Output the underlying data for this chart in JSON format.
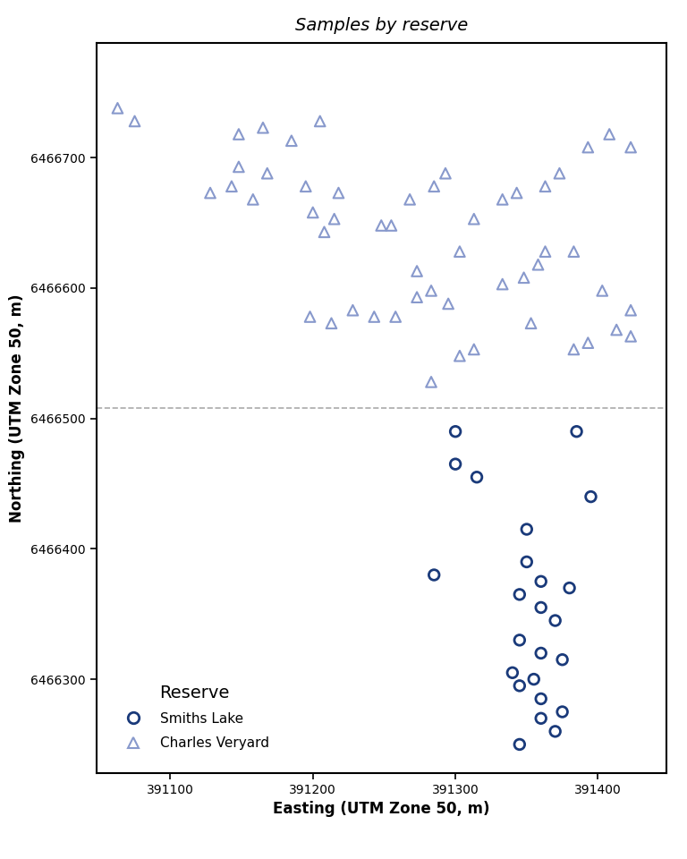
{
  "title": "Samples by reserve",
  "xlabel": "Easting (UTM Zone 50, m)",
  "ylabel": "Northing (UTM Zone 50, m)",
  "xlim": [
    391048,
    391448
  ],
  "ylim": [
    6466228,
    6466788
  ],
  "xticks": [
    391100,
    391200,
    391300,
    391400
  ],
  "yticks": [
    6466300,
    6466400,
    6466500,
    6466600,
    6466700
  ],
  "dashed_line_y": 6466508,
  "smiths_lake_color": "#1a3a7a",
  "charles_veryard_color": "#8899cc",
  "smiths_lake": {
    "easting": [
      391300,
      391385,
      391300,
      391315,
      391350,
      391285,
      391350,
      391395,
      391360,
      391380,
      391345,
      391360,
      391370,
      391345,
      391360,
      391375,
      391340,
      391355,
      391345,
      391360,
      391375,
      391345,
      391360,
      391370
    ],
    "northing": [
      6466490,
      6466490,
      6466465,
      6466455,
      6466415,
      6466380,
      6466390,
      6466440,
      6466375,
      6466370,
      6466365,
      6466355,
      6466345,
      6466330,
      6466320,
      6466315,
      6466305,
      6466300,
      6466295,
      6466285,
      6466275,
      6466250,
      6466270,
      6466260
    ]
  },
  "charles_veryard": {
    "easting": [
      391063,
      391075,
      391148,
      391165,
      391185,
      391205,
      391148,
      391168,
      391128,
      391143,
      391158,
      391195,
      391218,
      391248,
      391200,
      391215,
      391208,
      391255,
      391268,
      391285,
      391293,
      391313,
      391333,
      391343,
      391363,
      391373,
      391393,
      391408,
      391423,
      391303,
      391273,
      391243,
      391283,
      391295,
      391333,
      391348,
      391358,
      391363,
      391383,
      391403,
      391423,
      391303,
      391283,
      391313,
      391353,
      391383,
      391393,
      391413,
      391423,
      391198,
      391213,
      391228,
      391258,
      391273
    ],
    "northing": [
      6466738,
      6466728,
      6466718,
      6466723,
      6466713,
      6466728,
      6466693,
      6466688,
      6466673,
      6466678,
      6466668,
      6466678,
      6466673,
      6466648,
      6466658,
      6466653,
      6466643,
      6466648,
      6466668,
      6466678,
      6466688,
      6466653,
      6466668,
      6466673,
      6466678,
      6466688,
      6466708,
      6466718,
      6466708,
      6466628,
      6466613,
      6466578,
      6466598,
      6466588,
      6466603,
      6466608,
      6466618,
      6466628,
      6466628,
      6466598,
      6466583,
      6466548,
      6466528,
      6466553,
      6466573,
      6466553,
      6466558,
      6466568,
      6466563,
      6466578,
      6466573,
      6466583,
      6466578,
      6466593
    ]
  },
  "legend_title": "Reserve",
  "legend_labels": [
    "Smiths Lake",
    "Charles Veryard"
  ],
  "background_color": "#ffffff",
  "title_fontsize": 14,
  "label_fontsize": 12,
  "tick_fontsize": 10,
  "legend_fontsize": 11
}
